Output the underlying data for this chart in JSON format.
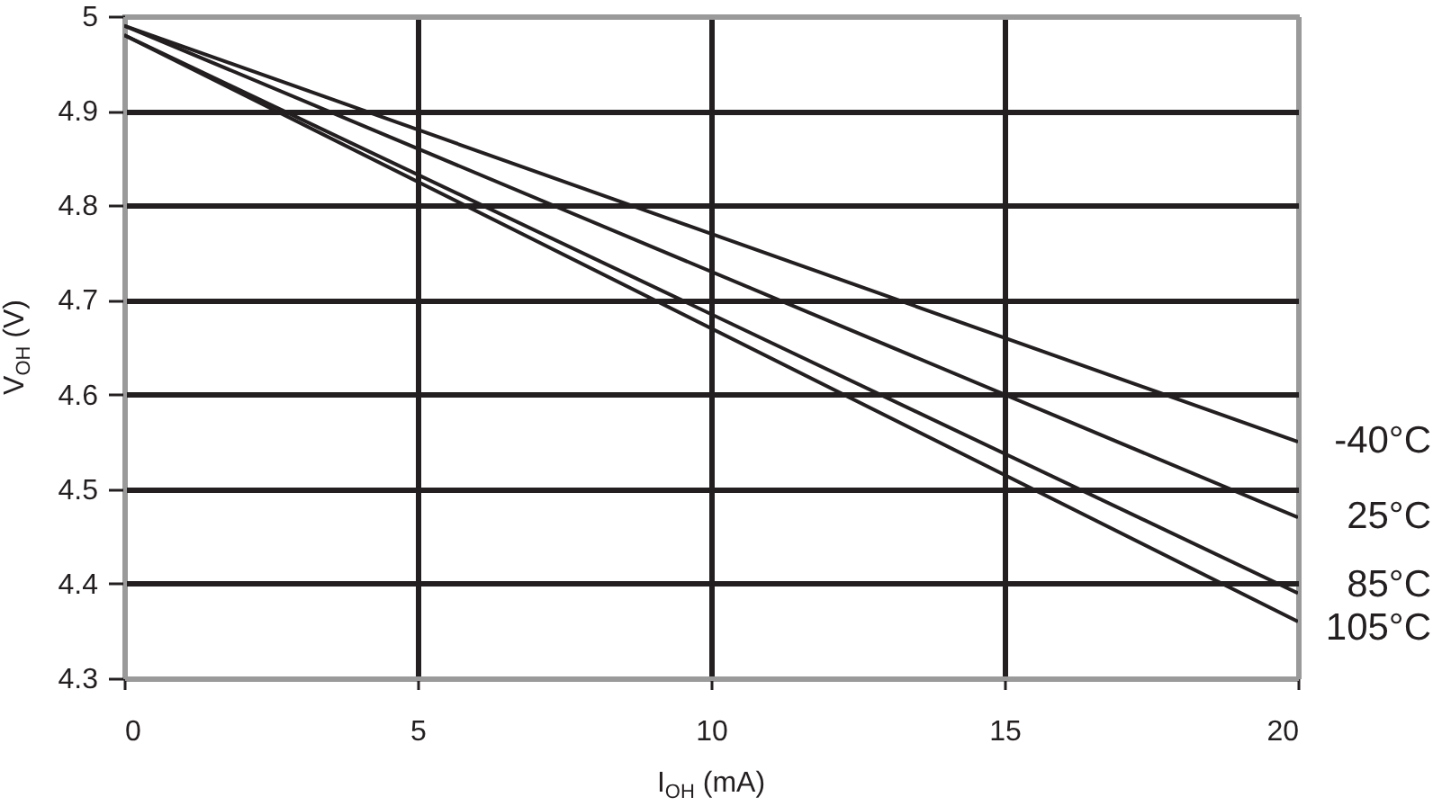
{
  "chart_data": {
    "type": "line",
    "xlabel": "I$_{OH}$ (mA)",
    "ylabel": "V$_{OH}$ (V)",
    "x": [
      0,
      20
    ],
    "series": [
      {
        "name": "-40°C",
        "color": "#231f20",
        "values": [
          4.99,
          4.55
        ]
      },
      {
        "name": "25°C",
        "color": "#231f20",
        "values": [
          4.99,
          4.47
        ]
      },
      {
        "name": "85°C",
        "color": "#231f20",
        "values": [
          4.98,
          4.39
        ]
      },
      {
        "name": "105°C",
        "color": "#231f20",
        "values": [
          4.98,
          4.36
        ]
      }
    ],
    "xlim": [
      0,
      20
    ],
    "xticks": [
      0,
      5,
      10,
      15,
      20
    ],
    "ylim": [
      4.3,
      5
    ],
    "yticks": [
      4.3,
      4.4,
      4.5,
      4.6,
      4.7,
      4.8,
      4.9,
      5
    ],
    "grid": true,
    "legend": false,
    "marker": "none",
    "line_style": "solid"
  }
}
